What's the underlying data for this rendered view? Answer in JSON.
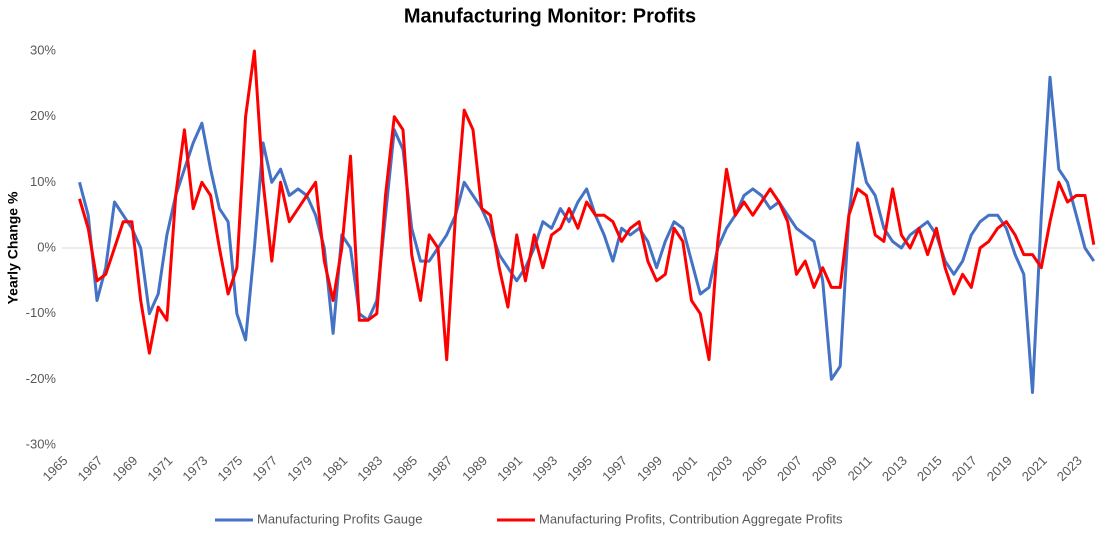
{
  "chart_data": {
    "type": "line",
    "title": "Manufacturing Monitor: Profits",
    "y_label": "Yearly Change %",
    "x": [
      1966,
      1966.5,
      1967,
      1967.5,
      1968,
      1968.5,
      1969,
      1969.5,
      1970,
      1970.5,
      1971,
      1971.5,
      1972,
      1972.5,
      1973,
      1973.5,
      1974,
      1974.5,
      1975,
      1975.5,
      1976,
      1976.5,
      1977,
      1977.5,
      1978,
      1978.5,
      1979,
      1979.5,
      1980,
      1980.5,
      1981,
      1981.5,
      1982,
      1982.5,
      1983,
      1983.5,
      1984,
      1984.5,
      1985,
      1985.5,
      1986,
      1986.5,
      1987,
      1987.5,
      1988,
      1988.5,
      1989,
      1989.5,
      1990,
      1990.5,
      1991,
      1991.5,
      1992,
      1992.5,
      1993,
      1993.5,
      1994,
      1994.5,
      1995,
      1995.5,
      1996,
      1996.5,
      1997,
      1997.5,
      1998,
      1998.5,
      1999,
      1999.5,
      2000,
      2000.5,
      2001,
      2001.5,
      2002,
      2002.5,
      2003,
      2003.5,
      2004,
      2004.5,
      2005,
      2005.5,
      2006,
      2006.5,
      2007,
      2007.5,
      2008,
      2008.5,
      2009,
      2009.5,
      2010,
      2010.5,
      2011,
      2011.5,
      2012,
      2012.5,
      2013,
      2013.5,
      2014,
      2014.5,
      2015,
      2015.5,
      2016,
      2016.5,
      2017,
      2017.5,
      2018,
      2018.5,
      2019,
      2019.5,
      2020,
      2020.5,
      2021,
      2021.5,
      2022,
      2022.5,
      2023,
      2023.5,
      2024
    ],
    "series": [
      {
        "name": "Manufacturing Profits Gauge",
        "color": "#4472c4",
        "values": [
          10,
          5,
          -8,
          -3,
          7,
          5,
          3,
          0,
          -10,
          -7,
          2,
          8,
          12,
          16,
          19,
          12,
          6,
          4,
          -10,
          -14,
          0,
          16,
          10,
          12,
          8,
          9,
          8,
          5,
          0,
          -13,
          2,
          0,
          -10,
          -11,
          -8,
          5,
          18,
          15,
          3,
          -2,
          -2,
          0,
          2,
          5,
          10,
          8,
          6,
          3,
          -1,
          -3,
          -5,
          -3,
          0,
          4,
          3,
          6,
          4,
          7,
          9,
          5,
          2,
          -2,
          3,
          2,
          3,
          1,
          -3,
          1,
          4,
          3,
          -2,
          -7,
          -6,
          0,
          3,
          5,
          8,
          9,
          8,
          6,
          7,
          5,
          3,
          2,
          1,
          -5,
          -20,
          -18,
          5,
          16,
          10,
          8,
          3,
          1,
          0,
          2,
          3,
          4,
          2,
          -2,
          -4,
          -2,
          2,
          4,
          5,
          5,
          3,
          -1,
          -4,
          -22,
          5,
          26,
          12,
          10,
          5,
          0,
          -2
        ]
      },
      {
        "name": "Manufacturing Profits, Contribution Aggregate Profits",
        "color": "#ff0000",
        "values": [
          7.5,
          3,
          -5,
          -4,
          0,
          4,
          4,
          -8,
          -16,
          -9,
          -11,
          8,
          18,
          6,
          10,
          8,
          0,
          -7,
          -3,
          20,
          30,
          10,
          -2,
          10,
          4,
          6,
          8,
          10,
          -2,
          -8,
          0,
          14,
          -11,
          -11,
          -10,
          8,
          20,
          18,
          -1,
          -8,
          2,
          0,
          -17,
          5,
          21,
          18,
          6,
          5,
          -3,
          -9,
          2,
          -5,
          2,
          -3,
          2,
          3,
          6,
          3,
          7,
          5,
          5,
          4,
          1,
          3,
          4,
          -2,
          -5,
          -4,
          3,
          1,
          -8,
          -10,
          -17,
          1,
          12,
          5,
          7,
          5,
          7,
          9,
          7,
          4,
          -4,
          -2,
          -6,
          -3,
          -6,
          -6,
          5,
          9,
          8,
          2,
          1,
          9,
          2,
          0,
          3,
          -1,
          3,
          -3,
          -7,
          -4,
          -6,
          0,
          1,
          3,
          4,
          2,
          -1,
          -1,
          -3,
          4,
          10,
          7,
          8,
          8,
          0.5
        ]
      }
    ],
    "xlim": [
      1965,
      2024.3
    ],
    "xticks": [
      1965,
      1967,
      1969,
      1971,
      1973,
      1975,
      1977,
      1979,
      1981,
      1983,
      1985,
      1987,
      1989,
      1991,
      1993,
      1995,
      1997,
      1999,
      2001,
      2003,
      2005,
      2007,
      2009,
      2011,
      2013,
      2015,
      2017,
      2019,
      2021,
      2023
    ],
    "ylim": [
      -30,
      30
    ],
    "yticks": [
      {
        "value": -30,
        "label": "-30%"
      },
      {
        "value": -20,
        "label": "-20%"
      },
      {
        "value": -10,
        "label": "-10%"
      },
      {
        "value": 0,
        "label": "0%"
      },
      {
        "value": 10,
        "label": "10%"
      },
      {
        "value": 20,
        "label": "20%"
      },
      {
        "value": 30,
        "label": "30%"
      }
    ],
    "legend": "bottom"
  }
}
